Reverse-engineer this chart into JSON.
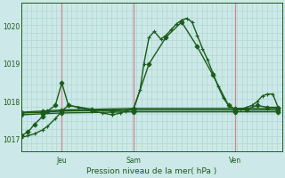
{
  "background_color": "#cce8e8",
  "grid_color_v": "#b0d8d0",
  "grid_color_h": "#b0d8d0",
  "vline_color": "#cc8888",
  "line_color": "#1a5c1a",
  "marker_color": "#1a5c1a",
  "title": "Pression niveau de la mer( hPa )",
  "ylim": [
    1016.7,
    1020.6
  ],
  "yticks": [
    1017,
    1018,
    1019,
    1020
  ],
  "n_vlines": 52,
  "n_hlines": 20,
  "day_lines": [
    0.155,
    0.43,
    0.82
  ],
  "xlabel_labels": [
    "Jeu",
    "Sam",
    "Ven"
  ],
  "series": [
    {
      "x": [
        0.0,
        0.025,
        0.05,
        0.08,
        0.1,
        0.13,
        0.155,
        0.18,
        0.22,
        0.27,
        0.31,
        0.35,
        0.38,
        0.4,
        0.43,
        0.455,
        0.47,
        0.49,
        0.51,
        0.535,
        0.555,
        0.575,
        0.595,
        0.615,
        0.635,
        0.655,
        0.675,
        0.695,
        0.715,
        0.735,
        0.755,
        0.775,
        0.795,
        0.82,
        0.84,
        0.865,
        0.885,
        0.905,
        0.925,
        0.945,
        0.965,
        0.985
      ],
      "y": [
        1017.05,
        1017.1,
        1017.15,
        1017.25,
        1017.35,
        1017.55,
        1017.75,
        1017.9,
        1017.85,
        1017.75,
        1017.7,
        1017.65,
        1017.7,
        1017.75,
        1017.8,
        1018.3,
        1019.0,
        1019.7,
        1019.85,
        1019.65,
        1019.75,
        1019.9,
        1020.05,
        1020.15,
        1020.2,
        1020.1,
        1019.75,
        1019.4,
        1019.1,
        1018.75,
        1018.4,
        1018.1,
        1017.9,
        1017.8,
        1017.8,
        1017.85,
        1017.9,
        1018.0,
        1018.15,
        1018.2,
        1018.2,
        1017.85
      ],
      "marker": "+",
      "linewidth": 1.0,
      "markersize": 3.5,
      "zorder": 4
    },
    {
      "x": [
        0.0,
        0.025,
        0.05,
        0.08,
        0.1,
        0.13,
        0.155,
        0.18,
        0.27,
        0.35,
        0.43,
        0.49,
        0.555,
        0.615,
        0.675,
        0.735,
        0.795,
        0.82,
        0.865,
        0.905,
        0.945,
        0.985
      ],
      "y": [
        1017.1,
        1017.2,
        1017.4,
        1017.6,
        1017.75,
        1017.9,
        1018.5,
        1017.9,
        1017.8,
        1017.75,
        1017.8,
        1019.0,
        1019.7,
        1020.1,
        1019.45,
        1018.7,
        1017.9,
        1017.8,
        1017.8,
        1017.9,
        1017.85,
        1017.85
      ],
      "marker": "D",
      "linewidth": 1.0,
      "markersize": 2.5,
      "zorder": 3
    },
    {
      "x": [
        0.0,
        0.08,
        0.155,
        0.43,
        0.82,
        0.985
      ],
      "y": [
        1017.7,
        1017.72,
        1017.75,
        1017.78,
        1017.78,
        1017.78
      ],
      "marker": "D",
      "linewidth": 1.1,
      "markersize": 2.5,
      "zorder": 3
    },
    {
      "x": [
        0.0,
        0.08,
        0.155,
        0.43,
        0.82,
        0.985
      ],
      "y": [
        1017.72,
        1017.75,
        1017.78,
        1017.82,
        1017.82,
        1017.82
      ],
      "marker": "D",
      "linewidth": 1.0,
      "markersize": 2.5,
      "zorder": 3
    },
    {
      "x": [
        0.0,
        0.08,
        0.155,
        0.43,
        0.82,
        0.985
      ],
      "y": [
        1017.65,
        1017.68,
        1017.7,
        1017.73,
        1017.73,
        1017.73
      ],
      "marker": "D",
      "linewidth": 1.0,
      "markersize": 2.5,
      "zorder": 3
    }
  ]
}
